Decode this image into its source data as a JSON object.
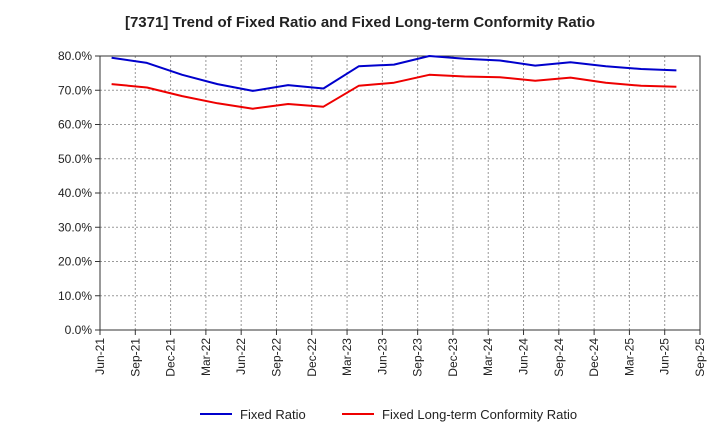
{
  "chart_data": {
    "type": "line",
    "title": "[7371]  Trend of Fixed Ratio and Fixed Long-term Conformity Ratio",
    "xlabel": "",
    "ylabel": "",
    "x_ticks": [
      "Jun-21",
      "Sep-21",
      "Dec-21",
      "Mar-22",
      "Jun-22",
      "Sep-22",
      "Dec-22",
      "Mar-23",
      "Jun-23",
      "Sep-23",
      "Dec-23",
      "Mar-24",
      "Jun-24",
      "Sep-24",
      "Dec-24",
      "Mar-25",
      "Jun-25",
      "Sep-25"
    ],
    "y_ticks": [
      "0.0%",
      "10.0%",
      "20.0%",
      "30.0%",
      "40.0%",
      "50.0%",
      "60.0%",
      "70.0%",
      "80.0%"
    ],
    "ylim": [
      0,
      80
    ],
    "grid": true,
    "legend_position": "bottom",
    "x": [
      "Jul-21",
      "Sep-21",
      "Dec-21",
      "Mar-22",
      "Jun-22",
      "Sep-22",
      "Dec-22",
      "Mar-23",
      "Jun-23",
      "Sep-23",
      "Dec-23",
      "Mar-24",
      "Jun-24",
      "Sep-24",
      "Dec-24",
      "Mar-25",
      "Jun-25"
    ],
    "series": [
      {
        "name": "Fixed Ratio",
        "color": "#0000cc",
        "values": [
          79.5,
          78.0,
          74.5,
          71.8,
          69.8,
          71.5,
          70.5,
          77.0,
          77.5,
          80.0,
          79.2,
          78.7,
          77.2,
          78.2,
          77.0,
          76.2,
          75.8
        ]
      },
      {
        "name": "Fixed Long-term Conformity Ratio",
        "color": "#ee0000",
        "values": [
          71.8,
          70.8,
          68.3,
          66.2,
          64.6,
          66.0,
          65.2,
          71.3,
          72.2,
          74.5,
          74.0,
          73.8,
          72.8,
          73.7,
          72.2,
          71.3,
          71.0
        ]
      }
    ]
  }
}
